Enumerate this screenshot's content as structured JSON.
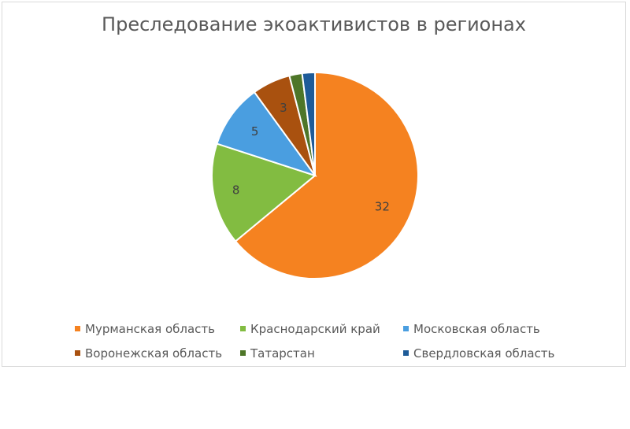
{
  "chart_data": {
    "type": "pie",
    "title": "Преследование экоактивистов в регионах",
    "legend_position": "bottom",
    "categories": [
      "Мурманская область",
      "Краснодарский край",
      "Московская область",
      "Воронежская область",
      "Татарстан",
      "Свердловская область"
    ],
    "values": [
      32,
      8,
      5,
      3,
      1,
      1
    ],
    "data_labels": [
      "32",
      "8",
      "5",
      "3",
      "",
      ""
    ],
    "colors": [
      "#f58220",
      "#82bc41",
      "#4a9ee0",
      "#a9510f",
      "#4e7628",
      "#1e5b98"
    ]
  }
}
